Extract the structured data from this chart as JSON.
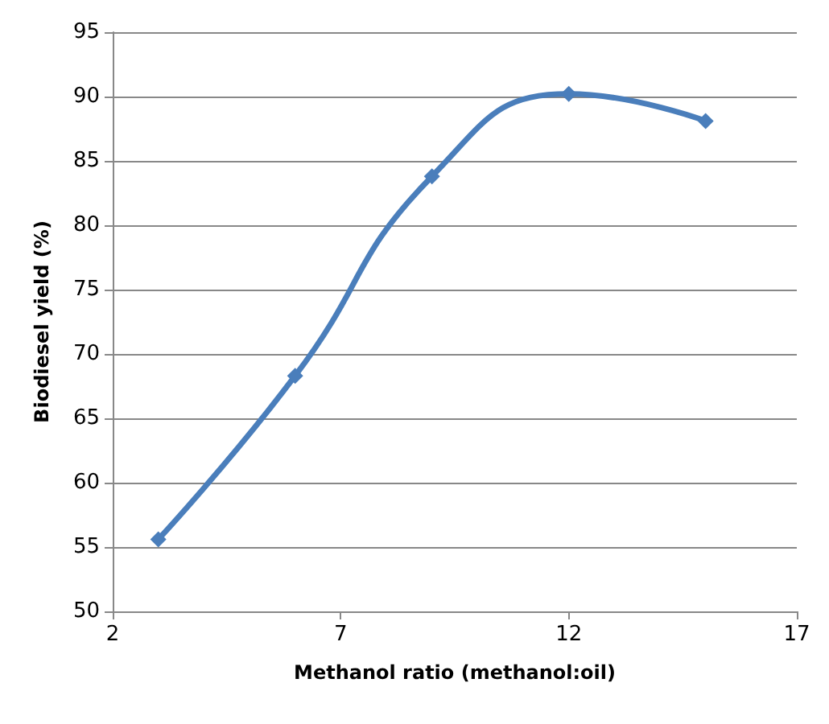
{
  "chart_data": {
    "type": "line",
    "xlabel": "Methanol ratio (methanol:oil)",
    "ylabel": "Biodiesel yield (%)",
    "x": [
      3,
      6,
      9,
      12,
      15
    ],
    "series": [
      {
        "color": "#4a7ebb",
        "values": [
          55.6,
          68.3,
          83.8,
          90.2,
          88.1
        ]
      }
    ],
    "xlim": [
      2,
      17
    ],
    "xticks": [
      2,
      7,
      12,
      17
    ],
    "ylim": [
      50,
      95
    ],
    "yticks": [
      50,
      55,
      60,
      65,
      70,
      75,
      80,
      85,
      90,
      95
    ],
    "grid": "y",
    "legend": false,
    "marker": "diamond",
    "line_style": "solid"
  }
}
